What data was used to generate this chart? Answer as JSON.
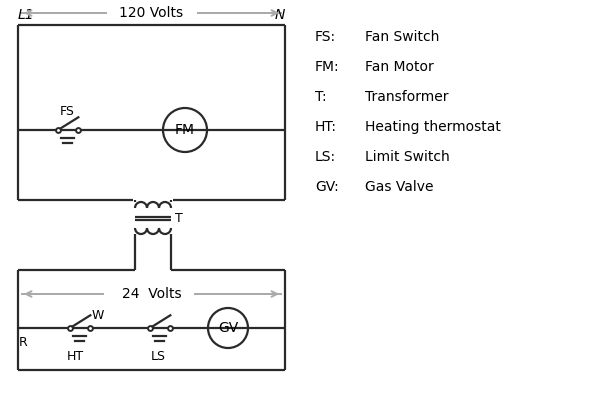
{
  "bg_color": "#ffffff",
  "line_color": "#2a2a2a",
  "gray_color": "#aaaaaa",
  "text_color": "#000000",
  "legend": [
    [
      "FS:",
      "Fan Switch"
    ],
    [
      "FM:",
      "Fan Motor"
    ],
    [
      "T:",
      "Transformer"
    ],
    [
      "HT:",
      "Heating thermostat"
    ],
    [
      "LS:",
      "Limit Switch"
    ],
    [
      "GV:",
      "Gas Valve"
    ]
  ],
  "font_size": 11
}
